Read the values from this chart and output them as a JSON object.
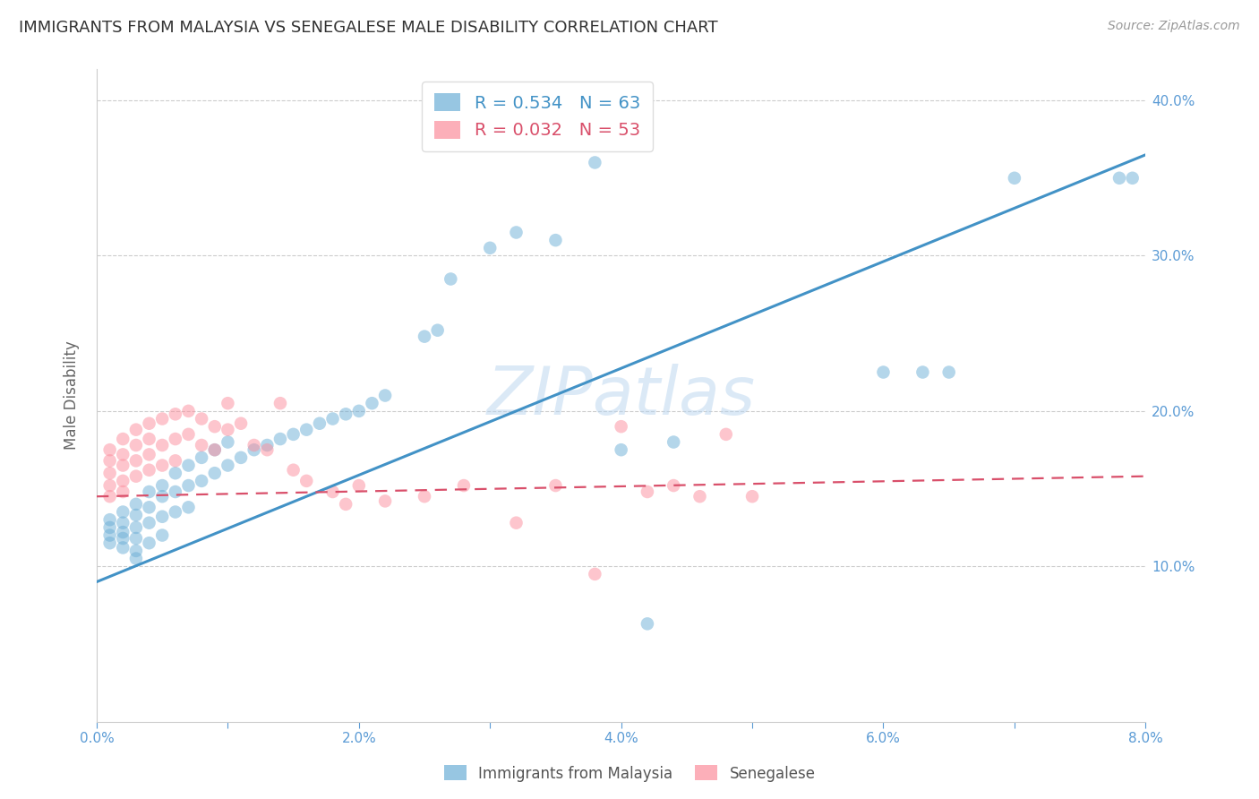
{
  "title": "IMMIGRANTS FROM MALAYSIA VS SENEGALESE MALE DISABILITY CORRELATION CHART",
  "source": "Source: ZipAtlas.com",
  "ylabel": "Male Disability",
  "x_min": 0.0,
  "x_max": 0.08,
  "y_min": 0.0,
  "y_max": 0.42,
  "x_ticks": [
    0.0,
    0.01,
    0.02,
    0.03,
    0.04,
    0.05,
    0.06,
    0.07,
    0.08
  ],
  "x_tick_labels": [
    "0.0%",
    "",
    "2.0%",
    "",
    "4.0%",
    "",
    "6.0%",
    "",
    "8.0%"
  ],
  "y_ticks": [
    0.0,
    0.1,
    0.2,
    0.3,
    0.4
  ],
  "y_tick_labels": [
    "",
    "10.0%",
    "20.0%",
    "30.0%",
    "40.0%"
  ],
  "legend1_r": "0.534",
  "legend1_n": "63",
  "legend2_r": "0.032",
  "legend2_n": "53",
  "color_blue": "#6baed6",
  "color_pink": "#fc8d9c",
  "color_blue_line": "#4292c6",
  "color_pink_line": "#d94f6a",
  "watermark": "ZIPatlas",
  "blue_scatter_x": [
    0.001,
    0.001,
    0.001,
    0.001,
    0.002,
    0.002,
    0.002,
    0.002,
    0.002,
    0.003,
    0.003,
    0.003,
    0.003,
    0.003,
    0.003,
    0.004,
    0.004,
    0.004,
    0.004,
    0.005,
    0.005,
    0.005,
    0.005,
    0.006,
    0.006,
    0.006,
    0.007,
    0.007,
    0.007,
    0.008,
    0.008,
    0.009,
    0.009,
    0.01,
    0.01,
    0.011,
    0.012,
    0.013,
    0.014,
    0.015,
    0.016,
    0.017,
    0.018,
    0.019,
    0.02,
    0.021,
    0.022,
    0.025,
    0.026,
    0.027,
    0.03,
    0.032,
    0.035,
    0.038,
    0.04,
    0.042,
    0.044,
    0.06,
    0.063,
    0.065,
    0.07,
    0.078,
    0.079
  ],
  "blue_scatter_y": [
    0.125,
    0.13,
    0.12,
    0.115,
    0.128,
    0.135,
    0.118,
    0.122,
    0.112,
    0.14,
    0.133,
    0.125,
    0.118,
    0.11,
    0.105,
    0.148,
    0.138,
    0.128,
    0.115,
    0.152,
    0.145,
    0.132,
    0.12,
    0.16,
    0.148,
    0.135,
    0.165,
    0.152,
    0.138,
    0.17,
    0.155,
    0.175,
    0.16,
    0.18,
    0.165,
    0.17,
    0.175,
    0.178,
    0.182,
    0.185,
    0.188,
    0.192,
    0.195,
    0.198,
    0.2,
    0.205,
    0.21,
    0.248,
    0.252,
    0.285,
    0.305,
    0.315,
    0.31,
    0.36,
    0.175,
    0.063,
    0.18,
    0.225,
    0.225,
    0.225,
    0.35,
    0.35,
    0.35
  ],
  "pink_scatter_x": [
    0.001,
    0.001,
    0.001,
    0.001,
    0.001,
    0.002,
    0.002,
    0.002,
    0.002,
    0.002,
    0.003,
    0.003,
    0.003,
    0.003,
    0.004,
    0.004,
    0.004,
    0.004,
    0.005,
    0.005,
    0.005,
    0.006,
    0.006,
    0.006,
    0.007,
    0.007,
    0.008,
    0.008,
    0.009,
    0.009,
    0.01,
    0.01,
    0.011,
    0.012,
    0.013,
    0.014,
    0.015,
    0.016,
    0.018,
    0.019,
    0.02,
    0.022,
    0.025,
    0.028,
    0.032,
    0.035,
    0.038,
    0.04,
    0.042,
    0.044,
    0.046,
    0.048,
    0.05
  ],
  "pink_scatter_y": [
    0.175,
    0.168,
    0.16,
    0.152,
    0.145,
    0.182,
    0.172,
    0.165,
    0.155,
    0.148,
    0.188,
    0.178,
    0.168,
    0.158,
    0.192,
    0.182,
    0.172,
    0.162,
    0.195,
    0.178,
    0.165,
    0.198,
    0.182,
    0.168,
    0.2,
    0.185,
    0.195,
    0.178,
    0.19,
    0.175,
    0.205,
    0.188,
    0.192,
    0.178,
    0.175,
    0.205,
    0.162,
    0.155,
    0.148,
    0.14,
    0.152,
    0.142,
    0.145,
    0.152,
    0.128,
    0.152,
    0.095,
    0.19,
    0.148,
    0.152,
    0.145,
    0.185,
    0.145
  ],
  "blue_line_x": [
    0.0,
    0.08
  ],
  "blue_line_y": [
    0.09,
    0.365
  ],
  "pink_line_x": [
    0.0,
    0.08
  ],
  "pink_line_y": [
    0.145,
    0.158
  ]
}
